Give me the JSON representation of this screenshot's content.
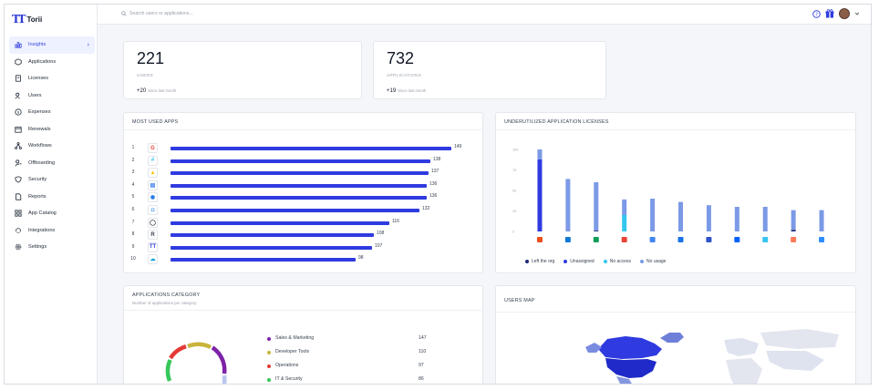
{
  "brand": {
    "name": "Torii",
    "mark": "TT"
  },
  "search": {
    "placeholder": "Search users or applications..."
  },
  "header": {
    "icons": [
      "help-icon",
      "gift-icon",
      "avatar"
    ]
  },
  "sidebar": {
    "items": [
      {
        "label": "Insights",
        "icon": "chart-icon",
        "active": true
      },
      {
        "label": "Applications",
        "icon": "apps-icon"
      },
      {
        "label": "Licenses",
        "icon": "license-icon"
      },
      {
        "label": "Users",
        "icon": "users-icon"
      },
      {
        "label": "Expenses",
        "icon": "dollar-icon"
      },
      {
        "label": "Renewals",
        "icon": "calendar-icon"
      },
      {
        "label": "Workflows",
        "icon": "workflow-icon"
      },
      {
        "label": "Offboarding",
        "icon": "offboard-icon"
      },
      {
        "label": "Security",
        "icon": "shield-icon"
      },
      {
        "label": "Reports",
        "icon": "report-icon"
      },
      {
        "label": "App Catalog",
        "icon": "catalog-icon"
      },
      {
        "label": "Integrations",
        "icon": "integration-icon"
      },
      {
        "label": "Settings",
        "icon": "gear-icon"
      }
    ]
  },
  "stats": {
    "users": {
      "value": "221",
      "label": "USERS",
      "delta": "+20",
      "delta_note": "Since last month"
    },
    "apps": {
      "value": "732",
      "label": "APPLICATIONS",
      "delta": "+19",
      "delta_note": "Since last month"
    }
  },
  "most_used": {
    "title": "MOST USED APPS",
    "rows": [
      {
        "rank": "1",
        "icon": "google-icon",
        "glyph": "G",
        "color": "#ea4335",
        "value": "149"
      },
      {
        "rank": "2",
        "icon": "slack-icon",
        "glyph": "#",
        "color": "#36c5f0",
        "value": "138"
      },
      {
        "rank": "3",
        "icon": "drive-icon",
        "glyph": "▲",
        "color": "#fbbc04",
        "value": "137"
      },
      {
        "rank": "4",
        "icon": "docs-icon",
        "glyph": "▤",
        "color": "#4285f4",
        "value": "136"
      },
      {
        "rank": "5",
        "icon": "chrome-icon",
        "glyph": "◉",
        "color": "#1a73e8",
        "value": "136"
      },
      {
        "rank": "6",
        "icon": "meet-icon",
        "glyph": "◘",
        "color": "#1e88e5",
        "value": "132"
      },
      {
        "rank": "7",
        "icon": "github-icon",
        "glyph": "◯",
        "color": "#24292e",
        "value": "116"
      },
      {
        "rank": "8",
        "icon": "r-icon",
        "glyph": "R",
        "color": "#374151",
        "value": "108"
      },
      {
        "rank": "9",
        "icon": "torii-icon",
        "glyph": "TT",
        "color": "#2f3bd6",
        "value": "107"
      },
      {
        "rank": "10",
        "icon": "salesforce-icon",
        "glyph": "☁",
        "color": "#00a1e0",
        "value": "98"
      }
    ]
  },
  "underutilized": {
    "title": "UNDERUTILIZED APPLICATION LICENSES",
    "legend": [
      {
        "label": "Left the org",
        "color": "#1e2a78"
      },
      {
        "label": "Unassigned",
        "color": "#2f3be0"
      },
      {
        "label": "No access",
        "color": "#33c7ef"
      },
      {
        "label": "No usage",
        "color": "#7b9ae6"
      }
    ]
  },
  "chart_data": {
    "type": "bar",
    "title": "UNDERUTILIZED APPLICATION LICENSES",
    "categories": [
      "Office 365",
      "Windows",
      "Evernote",
      "Google",
      "Docs",
      "Chrome",
      "Atlassian",
      "Dropbox",
      "Slack",
      "HubSpot",
      "Zoom"
    ],
    "icons": [
      "office-icon",
      "windows-icon",
      "evernote-icon",
      "google-icon",
      "docs-icon",
      "chrome-icon",
      "atlassian-icon",
      "dropbox-icon",
      "slack-icon",
      "hubspot-icon",
      "zoom-icon"
    ],
    "series": [
      {
        "name": "Left the org",
        "values": [
          0,
          0,
          1,
          0,
          0,
          0,
          0,
          0,
          0,
          2,
          0
        ]
      },
      {
        "name": "Unassigned",
        "values": [
          88,
          0,
          0,
          0,
          0,
          0,
          0,
          0,
          0,
          0,
          0
        ]
      },
      {
        "name": "No access",
        "values": [
          0,
          0,
          0,
          20,
          0,
          0,
          0,
          0,
          0,
          0,
          0
        ]
      },
      {
        "name": "No usage",
        "values": [
          12,
          64,
          59,
          19,
          40,
          36,
          32,
          30,
          30,
          24,
          26
        ]
      }
    ],
    "stacked": true,
    "ylim": [
      0,
      100
    ],
    "yticks": [
      "0",
      "25",
      "50",
      "75",
      "100"
    ],
    "grid": false,
    "legend_position": "bottom"
  },
  "categories": {
    "title": "APPLICATIONS CATEGORY",
    "subtitle": "Number of applications per category",
    "rows": [
      {
        "name": "Sales & Marketing",
        "value": "147",
        "color": "#7e22a8"
      },
      {
        "name": "Developer Tools",
        "value": "110",
        "color": "#c8b43c"
      },
      {
        "name": "Operations",
        "value": "97",
        "color": "#e53935"
      },
      {
        "name": "IT & Security",
        "value": "86",
        "color": "#34c759"
      }
    ]
  },
  "users_map": {
    "title": "USERS MAP"
  }
}
